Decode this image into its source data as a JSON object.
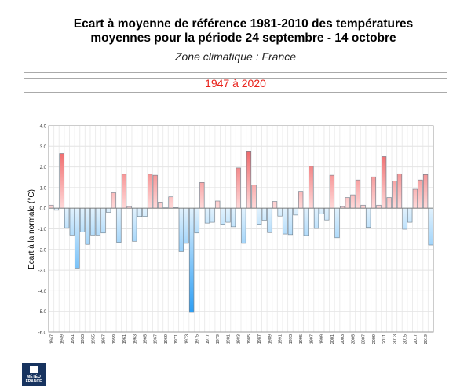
{
  "title_line1": "Ecart à moyenne de référence 1981-2010 des températures",
  "title_line2": "moyennes pour la période 24 septembre - 14 octobre",
  "zone": "Zone climatique : France",
  "period": "1947 à 2020",
  "logo_text": "MÉTÉO FRANCE",
  "colors": {
    "positive": "#e8383a",
    "negative": "#2a9df4",
    "period": "#e8211a"
  },
  "chart_data": {
    "type": "bar",
    "title": "Ecart à moyenne de référence 1981-2010 des températures moyennes pour la période 24 septembre - 14 octobre",
    "ylabel": "Ecart à la normale (°C)",
    "xlabel": "",
    "ylim": [
      -6,
      4
    ],
    "yticks": [
      "4.0",
      "3.0",
      "2.0",
      "1.0",
      "0.0",
      "-1.0",
      "-2.0",
      "-3.0",
      "-4.0",
      "-5.0",
      "-6.0"
    ],
    "grid": true,
    "categories": [
      1947,
      1948,
      1949,
      1950,
      1951,
      1952,
      1953,
      1954,
      1955,
      1956,
      1957,
      1958,
      1959,
      1960,
      1961,
      1962,
      1963,
      1964,
      1965,
      1966,
      1967,
      1968,
      1969,
      1970,
      1971,
      1972,
      1973,
      1974,
      1975,
      1976,
      1977,
      1978,
      1979,
      1980,
      1981,
      1982,
      1983,
      1984,
      1985,
      1986,
      1987,
      1988,
      1989,
      1990,
      1991,
      1992,
      1993,
      1994,
      1995,
      1996,
      1997,
      1998,
      1999,
      2000,
      2001,
      2002,
      2003,
      2004,
      2005,
      2006,
      2007,
      2008,
      2009,
      2010,
      2011,
      2012,
      2013,
      2014,
      2015,
      2016,
      2017,
      2018,
      2019,
      2020
    ],
    "values": [
      0.15,
      -0.1,
      2.65,
      -0.95,
      -1.3,
      -2.9,
      -1.15,
      -1.75,
      -1.3,
      -1.3,
      -1.2,
      -0.2,
      0.75,
      -1.65,
      1.65,
      0.08,
      -1.6,
      -0.4,
      -0.4,
      1.65,
      1.6,
      0.3,
      0.02,
      0.55,
      0.03,
      -2.1,
      -1.7,
      -5.05,
      -1.2,
      1.25,
      -0.72,
      -0.68,
      0.35,
      -0.78,
      -0.68,
      -0.9,
      1.95,
      -1.7,
      2.77,
      1.12,
      -0.78,
      -0.58,
      -1.18,
      0.33,
      -0.38,
      -1.25,
      -1.28,
      -0.33,
      0.82,
      -1.32,
      2.03,
      -0.98,
      -0.27,
      -0.57,
      1.6,
      -1.43,
      0.08,
      0.52,
      0.65,
      1.37,
      0.15,
      -0.93,
      1.52,
      0.15,
      2.5,
      0.52,
      1.32,
      1.67,
      -1.02,
      -0.68,
      0.92,
      1.37,
      1.63,
      -1.78
    ]
  }
}
